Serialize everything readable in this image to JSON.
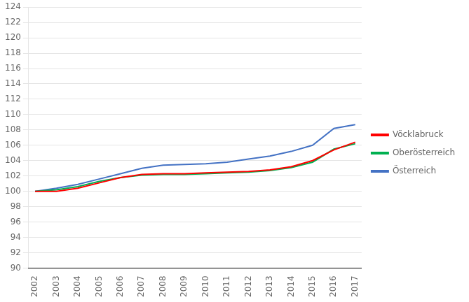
{
  "chart_data": {
    "type": "line",
    "x": [
      2002,
      2003,
      2004,
      2005,
      2006,
      2007,
      2008,
      2009,
      2010,
      2011,
      2012,
      2013,
      2014,
      2015,
      2016,
      2017
    ],
    "series": [
      {
        "name": "Vöcklabruck",
        "color": "#ff0000",
        "values": [
          100.0,
          100.0,
          100.4,
          101.1,
          101.8,
          102.2,
          102.3,
          102.3,
          102.4,
          102.5,
          102.6,
          102.8,
          103.2,
          104.0,
          105.4,
          106.4
        ]
      },
      {
        "name": "Oberösterreich",
        "color": "#00b050",
        "values": [
          100.0,
          100.2,
          100.6,
          101.3,
          101.8,
          102.1,
          102.2,
          102.2,
          102.3,
          102.4,
          102.5,
          102.7,
          103.1,
          103.8,
          105.5,
          106.2
        ]
      },
      {
        "name": "Österreich",
        "color": "#4472c4",
        "values": [
          100.0,
          100.4,
          100.9,
          101.6,
          102.3,
          103.0,
          103.4,
          103.5,
          103.6,
          103.8,
          104.2,
          104.6,
          105.2,
          106.0,
          108.2,
          108.7
        ]
      }
    ],
    "xlim": [
      2001.7,
      2017.3
    ],
    "xticks": [
      2002,
      2003,
      2004,
      2005,
      2006,
      2007,
      2008,
      2009,
      2010,
      2011,
      2012,
      2013,
      2014,
      2015,
      2016,
      2017
    ],
    "ylim": [
      90,
      124
    ],
    "yticks": [
      90,
      92,
      94,
      96,
      98,
      100,
      102,
      104,
      106,
      108,
      110,
      112,
      114,
      116,
      118,
      120,
      122,
      124
    ],
    "grid": "y",
    "legend": "right"
  }
}
